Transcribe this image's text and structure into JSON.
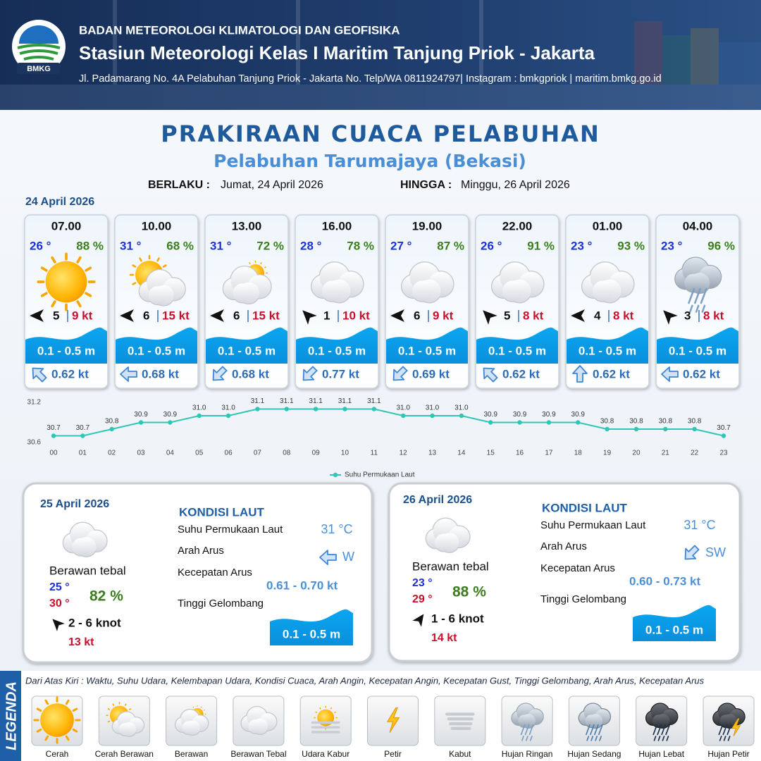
{
  "header": {
    "logo_text": "BMKG",
    "agency": "BADAN METEOROLOGI KLIMATOLOGI DAN GEOFISIKA",
    "station": "Stasiun Meteorologi Kelas I Maritim Tanjung Priok - Jakarta",
    "address": "Jl. Padamarang No. 4A Pelabuhan Tanjung Priok - Jakarta No. Telp/WA 0811924797| Instagram : bmkgpriok | maritim.bmkg.go.id"
  },
  "title": "PRAKIRAAN CUACA PELABUHAN",
  "subtitle": "Pelabuhan Tarumajaya (Bekasi)",
  "validity": {
    "from_label": "BERLAKU :",
    "from": "Jumat, 24 April 2026",
    "to_label": "HINGGA :",
    "to": "Minggu, 26 April 2026"
  },
  "day1": {
    "date": "24 April 2026",
    "forecasts": [
      {
        "time": "07.00",
        "temp": "26 °",
        "humidity": "88 %",
        "wind": "5",
        "gust": "9 kt",
        "wave": "0.1 - 0.5 m",
        "current": "0.62 kt"
      },
      {
        "time": "10.00",
        "temp": "31 °",
        "humidity": "68 %",
        "wind": "6",
        "gust": "15 kt",
        "wave": "0.1 - 0.5 m",
        "current": "0.68 kt"
      },
      {
        "time": "13.00",
        "temp": "31 °",
        "humidity": "72 %",
        "wind": "6",
        "gust": "15 kt",
        "wave": "0.1 - 0.5 m",
        "current": "0.68 kt"
      },
      {
        "time": "16.00",
        "temp": "28 °",
        "humidity": "78 %",
        "wind": "1",
        "gust": "10 kt",
        "wave": "0.1 - 0.5 m",
        "current": "0.77 kt"
      },
      {
        "time": "19.00",
        "temp": "27 °",
        "humidity": "87 %",
        "wind": "6",
        "gust": "9 kt",
        "wave": "0.1 - 0.5 m",
        "current": "0.69 kt"
      },
      {
        "time": "22.00",
        "temp": "26 °",
        "humidity": "91 %",
        "wind": "5",
        "gust": "8 kt",
        "wave": "0.1 - 0.5 m",
        "current": "0.62 kt"
      },
      {
        "time": "01.00",
        "temp": "23 °",
        "humidity": "93 %",
        "wind": "4",
        "gust": "8 kt",
        "wave": "0.1 - 0.5 m",
        "current": "0.62 kt"
      },
      {
        "time": "04.00",
        "temp": "23 °",
        "humidity": "96 %",
        "wind": "3",
        "gust": "8 kt",
        "wave": "0.1 - 0.5 m",
        "current": "0.62 kt"
      }
    ]
  },
  "chart_data": {
    "type": "line",
    "categories": [
      "00",
      "01",
      "02",
      "03",
      "04",
      "05",
      "06",
      "07",
      "08",
      "09",
      "10",
      "11",
      "12",
      "13",
      "14",
      "15",
      "16",
      "17",
      "18",
      "19",
      "20",
      "21",
      "22",
      "23"
    ],
    "series": [
      {
        "name": "Suhu Permukaan Laut",
        "color": "#2ec7b5",
        "values": [
          30.7,
          30.7,
          30.8,
          30.9,
          30.9,
          31.0,
          31.0,
          31.1,
          31.1,
          31.1,
          31.1,
          31.1,
          31.0,
          31.0,
          31.0,
          30.9,
          30.9,
          30.9,
          30.9,
          30.8,
          30.8,
          30.8,
          30.8,
          30.7
        ],
        "value_labels": [
          "30.7",
          "30.7",
          "30.8",
          "30.9",
          "30.9",
          "31.0",
          "31.0",
          "31.1",
          "31.1",
          "31.1",
          "31.1",
          "31.1",
          "31.0",
          "31.0",
          "31.0",
          "30.9",
          "30.9",
          "30.9",
          "30.9",
          "30.8",
          "30.8",
          "30.8",
          "30.8",
          "30.7"
        ]
      }
    ],
    "ylim": [
      30.6,
      31.2
    ],
    "yticks": [
      30.6,
      31.2
    ]
  },
  "daily": [
    {
      "date": "25 April 2026",
      "weather": "Berawan tebal",
      "tmin": "25 °",
      "tmax": "30 °",
      "humidity": "82 %",
      "wind": "2  - 6 knot",
      "gust": "13 kt",
      "heading": "KONDISI LAUT",
      "sst_label": "Suhu Permukaan Laut",
      "sst": "31 °C",
      "current_dir_label": "Arah Arus",
      "current_dir": "W",
      "current_speed_label": "Kecepatan Arus",
      "current_speed": "0.61  - 0.70 kt",
      "wave_label": "Tinggi Gelombang",
      "wave": "0.1 - 0.5 m"
    },
    {
      "date": "26 April 2026",
      "weather": "Berawan tebal",
      "tmin": "23 °",
      "tmax": "29 °",
      "humidity": "88 %",
      "wind": "1  - 6 knot",
      "gust": "14 kt",
      "heading": "KONDISI LAUT",
      "sst_label": "Suhu Permukaan Laut",
      "sst": "31 °C",
      "current_dir_label": "Arah Arus",
      "current_dir": "SW",
      "current_speed_label": "Kecepatan Arus",
      "current_speed": "0.60 - 0.73 kt",
      "wave_label": "Tinggi Gelombang",
      "wave": "0.1 - 0.5 m"
    }
  ],
  "legend": {
    "title": "LEGENDA",
    "description": "Dari Atas Kiri : Waktu, Suhu Udara, Kelembapan Udara, Kondisi Cuaca, Arah Angin, Kecepatan Angin, Kecepatan Gust, Tinggi Gelombang, Arah Arus, Kecepatan Arus",
    "items": [
      "Cerah",
      "Cerah Berawan",
      "Berawan",
      "Berawan Tebal",
      "Udara Kabur",
      "Petir",
      "Kabut",
      "Hujan Ringan",
      "Hujan Sedang",
      "Hujan Lebat",
      "Hujan Petir"
    ]
  }
}
